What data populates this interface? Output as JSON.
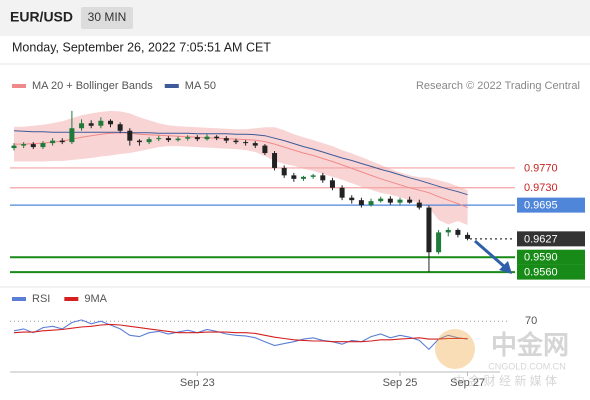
{
  "header": {
    "symbol": "EUR/USD",
    "interval": "30 MIN"
  },
  "timestamp": "Monday, September 26, 2022 7:05:51 AM CET",
  "watermark": {
    "name": "中金网",
    "site": "CNGOLD.COM.CN",
    "tagline": "中 金 财 经 新 媒 体"
  },
  "chart_data": [
    {
      "type": "candlestick",
      "credit": "Research © 2022 Trading Central",
      "ylim": [
        0.9538,
        0.9917
      ],
      "up_color": "#1f7a3c",
      "down_color": "#222222",
      "open": [
        0.981,
        0.9815,
        0.9818,
        0.9812,
        0.982,
        0.9825,
        0.9822,
        0.985,
        0.986,
        0.9855,
        0.9865,
        0.9858,
        0.9845,
        0.9825,
        0.9822,
        0.9828,
        0.983,
        0.9826,
        0.9829,
        0.9832,
        0.9828,
        0.9833,
        0.983,
        0.9825,
        0.9822,
        0.982,
        0.9815,
        0.98,
        0.977,
        0.9755,
        0.9748,
        0.9752,
        0.9755,
        0.9745,
        0.973,
        0.971,
        0.9705,
        0.9695,
        0.9703,
        0.9708,
        0.97,
        0.9706,
        0.97,
        0.969,
        0.96,
        0.964,
        0.9645,
        0.9635
      ],
      "high": [
        0.982,
        0.9822,
        0.9822,
        0.9824,
        0.983,
        0.983,
        0.9885,
        0.9868,
        0.9866,
        0.9872,
        0.9868,
        0.9862,
        0.985,
        0.9828,
        0.9832,
        0.9835,
        0.9834,
        0.9833,
        0.9836,
        0.9836,
        0.9838,
        0.9836,
        0.9834,
        0.9829,
        0.9826,
        0.9824,
        0.9818,
        0.9804,
        0.9775,
        0.976,
        0.9754,
        0.9758,
        0.976,
        0.975,
        0.9735,
        0.9715,
        0.971,
        0.9708,
        0.9712,
        0.9713,
        0.971,
        0.9712,
        0.9706,
        0.9694,
        0.9645,
        0.965,
        0.9648,
        0.964
      ],
      "low": [
        0.9805,
        0.981,
        0.9808,
        0.9808,
        0.9815,
        0.9818,
        0.9818,
        0.9845,
        0.985,
        0.985,
        0.9852,
        0.984,
        0.9815,
        0.9815,
        0.9818,
        0.9824,
        0.9822,
        0.9823,
        0.9825,
        0.9824,
        0.9825,
        0.9826,
        0.982,
        0.9818,
        0.9815,
        0.981,
        0.9796,
        0.9765,
        0.975,
        0.9742,
        0.9744,
        0.9748,
        0.974,
        0.9725,
        0.9705,
        0.9698,
        0.969,
        0.9692,
        0.97,
        0.9696,
        0.9696,
        0.9698,
        0.9686,
        0.956,
        0.9596,
        0.9632,
        0.963,
        0.9624
      ],
      "close": [
        0.9815,
        0.9818,
        0.9812,
        0.982,
        0.9825,
        0.9822,
        0.985,
        0.986,
        0.9855,
        0.9865,
        0.9858,
        0.9845,
        0.9825,
        0.9822,
        0.9828,
        0.983,
        0.9826,
        0.9829,
        0.9832,
        0.9828,
        0.9833,
        0.983,
        0.9825,
        0.9822,
        0.982,
        0.9815,
        0.98,
        0.977,
        0.9755,
        0.9748,
        0.9752,
        0.9755,
        0.9745,
        0.973,
        0.971,
        0.9705,
        0.9695,
        0.9703,
        0.9708,
        0.97,
        0.9706,
        0.97,
        0.969,
        0.96,
        0.964,
        0.9645,
        0.9635,
        0.9627
      ],
      "series": [
        {
          "name": "MA 20 + Bollinger Bands",
          "color": "#f08a8a",
          "band_color": "#f7c9c9",
          "values": [
            0.9818,
            0.9818,
            0.9819,
            0.982,
            0.9822,
            0.9824,
            0.9828,
            0.9832,
            0.9835,
            0.9838,
            0.984,
            0.9841,
            0.984,
            0.9838,
            0.9837,
            0.9836,
            0.9835,
            0.9834,
            0.9833,
            0.9832,
            0.9831,
            0.983,
            0.9829,
            0.9828,
            0.9827,
            0.9826,
            0.9823,
            0.9818,
            0.9812,
            0.9806,
            0.98,
            0.9795,
            0.9789,
            0.9783,
            0.9776,
            0.9769,
            0.9762,
            0.9755,
            0.9748,
            0.9742,
            0.9736,
            0.973,
            0.9725,
            0.972,
            0.9712,
            0.9705,
            0.9698,
            0.969
          ],
          "upper": [
            0.9853,
            0.9853,
            0.9855,
            0.9857,
            0.986,
            0.9864,
            0.987,
            0.9876,
            0.988,
            0.9883,
            0.9885,
            0.9884,
            0.988,
            0.9872,
            0.9866,
            0.986,
            0.9856,
            0.9854,
            0.9853,
            0.9852,
            0.9851,
            0.985,
            0.9849,
            0.9848,
            0.9848,
            0.985,
            0.9852,
            0.9852,
            0.9846,
            0.9838,
            0.9832,
            0.9826,
            0.982,
            0.9814,
            0.9806,
            0.9799,
            0.9792,
            0.9784,
            0.9776,
            0.9768,
            0.9761,
            0.9755,
            0.9751,
            0.975,
            0.9745,
            0.974,
            0.9733,
            0.9725
          ],
          "lower": [
            0.9783,
            0.9783,
            0.9783,
            0.9783,
            0.9784,
            0.9784,
            0.9786,
            0.9788,
            0.979,
            0.9793,
            0.9795,
            0.9798,
            0.98,
            0.9804,
            0.9808,
            0.9812,
            0.9814,
            0.9814,
            0.9813,
            0.9812,
            0.9811,
            0.981,
            0.9809,
            0.9808,
            0.9806,
            0.9802,
            0.9794,
            0.9784,
            0.9778,
            0.9774,
            0.9768,
            0.9764,
            0.9758,
            0.9752,
            0.9746,
            0.9739,
            0.9732,
            0.9726,
            0.972,
            0.9716,
            0.9711,
            0.9705,
            0.9699,
            0.969,
            0.9665,
            0.9656,
            0.9663,
            0.9655
          ]
        },
        {
          "name": "MA 50",
          "color": "#3d5a99",
          "values": [
            0.9845,
            0.9844,
            0.9843,
            0.9843,
            0.9842,
            0.9842,
            0.9842,
            0.9842,
            0.9842,
            0.9842,
            0.9842,
            0.9842,
            0.9841,
            0.9841,
            0.9841,
            0.984,
            0.984,
            0.984,
            0.984,
            0.9839,
            0.9839,
            0.9839,
            0.9839,
            0.9838,
            0.9838,
            0.9837,
            0.9835,
            0.983,
            0.9825,
            0.9819,
            0.9813,
            0.9808,
            0.9802,
            0.9796,
            0.979,
            0.9785,
            0.9779,
            0.9773,
            0.9767,
            0.9762,
            0.9756,
            0.975,
            0.9745,
            0.9739,
            0.9733,
            0.9727,
            0.9722,
            0.9716
          ]
        }
      ],
      "levels": [
        {
          "value": 0.977,
          "label": "0.9770",
          "color": "#f4a3a3",
          "text_color": "#cc2222",
          "boxed": false,
          "line": "solid"
        },
        {
          "value": 0.973,
          "label": "0.9730",
          "color": "#f4a3a3",
          "text_color": "#cc2222",
          "boxed": false,
          "line": "solid"
        },
        {
          "value": 0.9695,
          "label": "0.9695",
          "color": "#4f86d9",
          "text_color": "#ffffff",
          "boxed": true,
          "line": "solid"
        },
        {
          "value": 0.9627,
          "label": "0.9627",
          "color": "#333333",
          "text_color": "#ffffff",
          "boxed": true,
          "line": "dotted"
        },
        {
          "value": 0.959,
          "label": "0.9590",
          "color": "#178a17",
          "text_color": "#ffffff",
          "boxed": true,
          "line": "solid"
        },
        {
          "value": 0.956,
          "label": "0.9560",
          "color": "#178a17",
          "text_color": "#ffffff",
          "boxed": true,
          "line": "solid"
        }
      ]
    },
    {
      "type": "line",
      "ylim": [
        0,
        100
      ],
      "yticks": [
        70
      ],
      "categories": [
        null,
        null,
        null,
        null,
        null,
        null,
        null,
        null,
        null,
        null,
        null,
        null,
        null,
        null,
        null,
        null,
        null,
        null,
        null,
        "Sep 23",
        null,
        null,
        null,
        null,
        null,
        null,
        null,
        null,
        null,
        null,
        null,
        null,
        null,
        null,
        null,
        null,
        null,
        null,
        null,
        null,
        "Sep 25",
        null,
        null,
        null,
        null,
        null,
        null,
        "Sep 27"
      ],
      "series": [
        {
          "name": "RSI",
          "color": "#5b7fd6",
          "values": [
            55,
            58,
            52,
            60,
            62,
            58,
            68,
            72,
            66,
            70,
            64,
            58,
            48,
            46,
            52,
            54,
            50,
            53,
            56,
            52,
            57,
            54,
            50,
            48,
            47,
            44,
            38,
            32,
            35,
            38,
            42,
            44,
            40,
            38,
            34,
            40,
            38,
            46,
            50,
            44,
            48,
            45,
            40,
            26,
            42,
            48,
            44,
            42
          ]
        },
        {
          "name": "9MA",
          "color": "#d42020",
          "values": [
            52,
            53,
            53,
            55,
            56,
            57,
            59,
            61,
            62,
            64,
            65,
            64,
            62,
            60,
            58,
            56,
            54,
            52,
            52,
            52,
            53,
            53,
            53,
            52,
            52,
            51,
            48,
            45,
            43,
            41,
            40,
            39,
            39,
            38,
            38,
            38,
            38,
            39,
            41,
            41,
            42,
            43,
            44,
            42,
            42,
            43,
            43,
            43
          ]
        }
      ]
    }
  ]
}
